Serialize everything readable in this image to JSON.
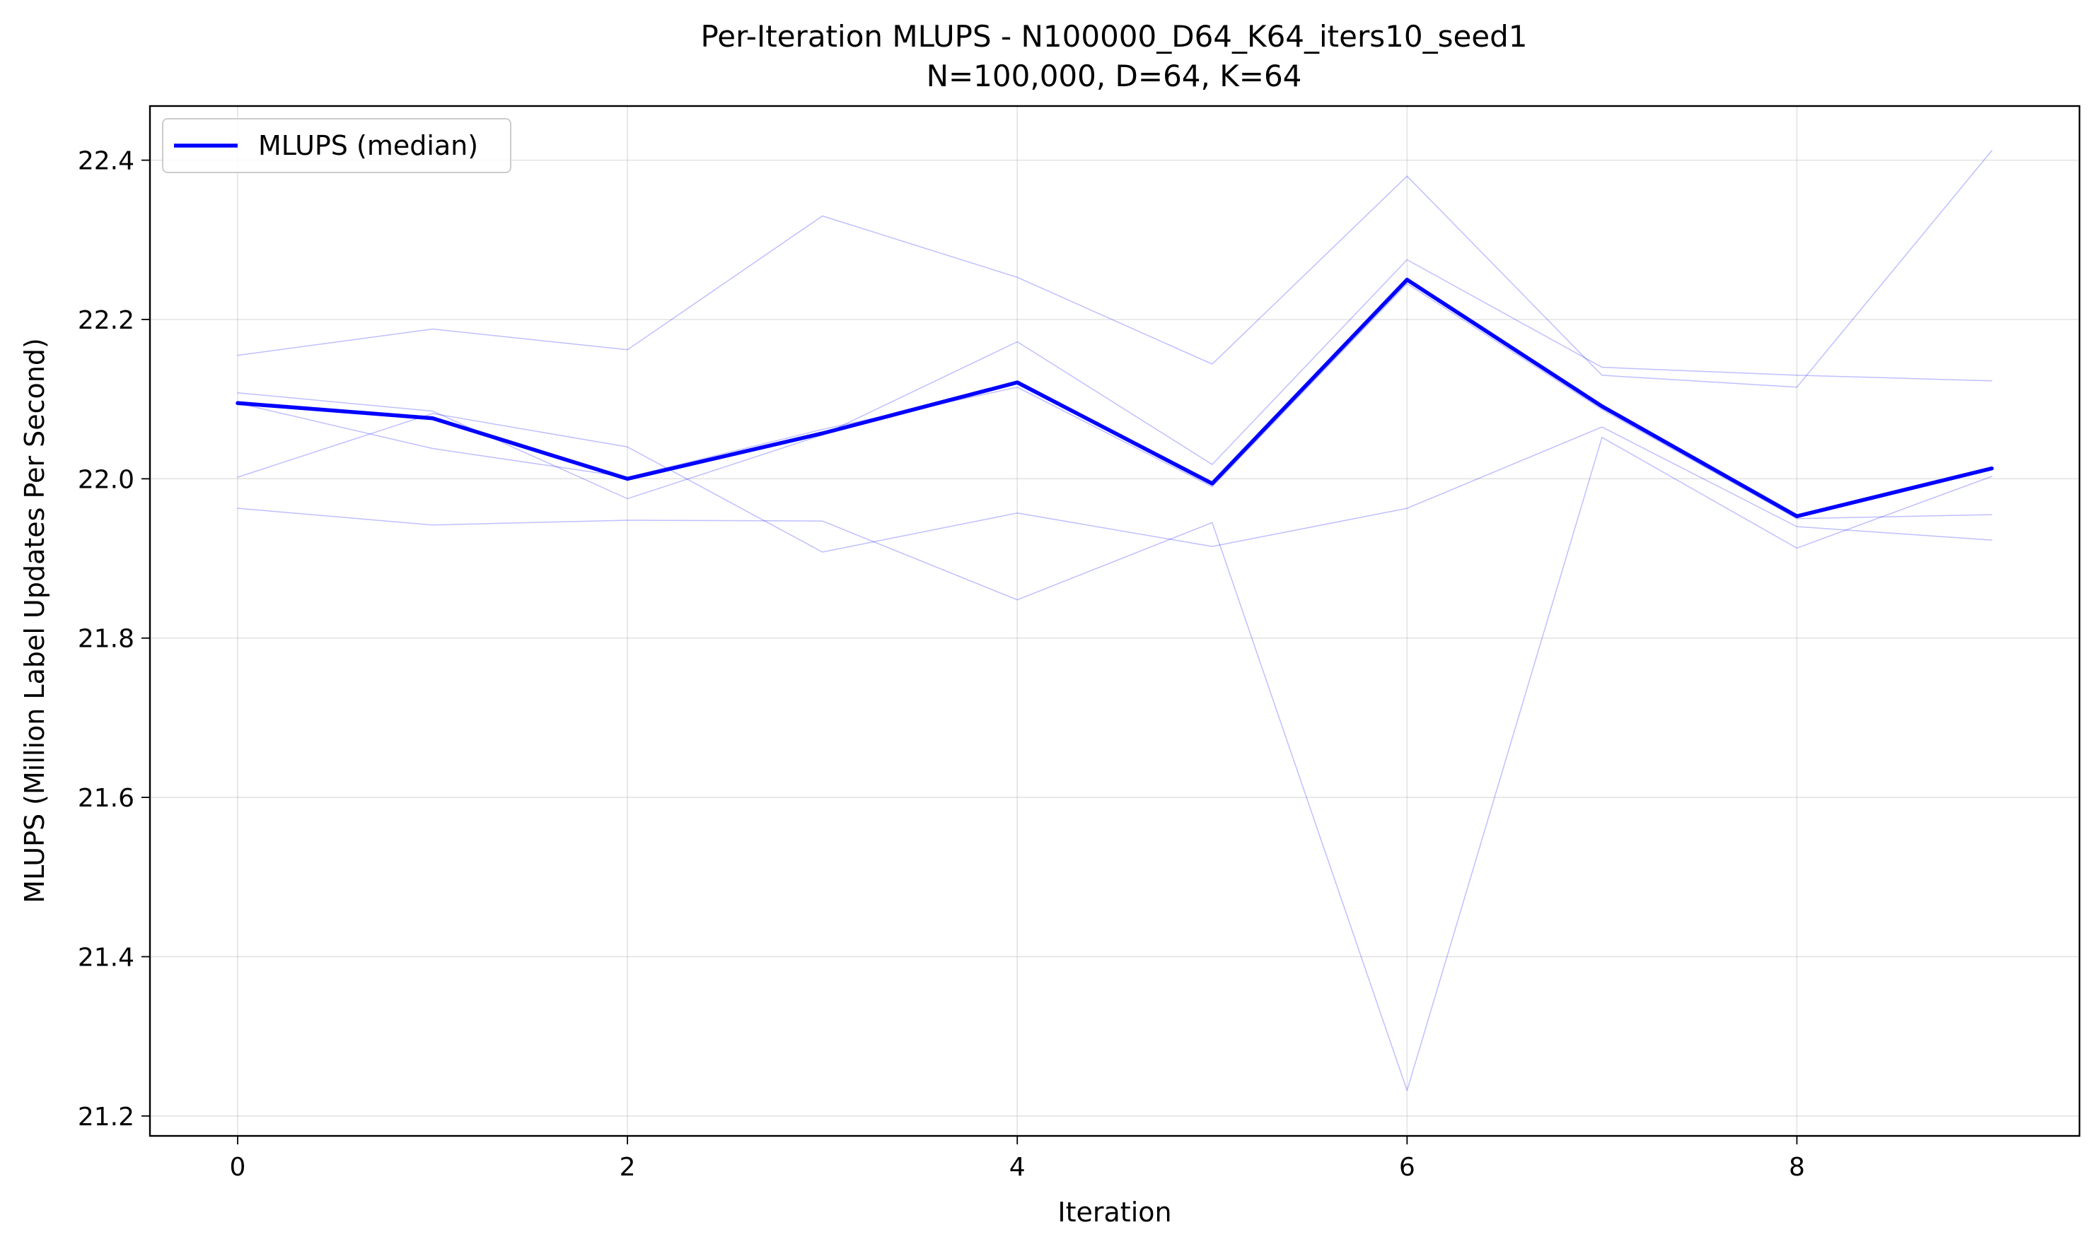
{
  "chart_data": {
    "type": "line",
    "title": "Per-Iteration MLUPS - N100000_D64_K64_iters10_seed1",
    "subtitle": "N=100,000, D=64, K=64",
    "xlabel": "Iteration",
    "ylabel": "MLUPS (Million Label Updates Per Second)",
    "xlim": [
      -0.45,
      9.45
    ],
    "ylim": [
      21.175,
      22.468
    ],
    "xticks": [
      0,
      2,
      4,
      6,
      8
    ],
    "xtick_labels": [
      "0",
      "2",
      "4",
      "6",
      "8"
    ],
    "yticks": [
      21.2,
      21.4,
      21.6,
      21.8,
      22.0,
      22.2,
      22.4
    ],
    "ytick_labels": [
      "21.2",
      "21.4",
      "21.6",
      "21.8",
      "22.0",
      "22.2",
      "22.4"
    ],
    "grid": true,
    "legend_position": "top-left",
    "x": [
      0,
      1,
      2,
      3,
      4,
      5,
      6,
      7,
      8,
      9
    ],
    "series": [
      {
        "name": "MLUPS (median)",
        "values": [
          22.095,
          22.076,
          22.0,
          22.057,
          22.121,
          21.994,
          22.25,
          22.091,
          21.953,
          22.013
        ],
        "color": "#0000ff",
        "highlight": true
      },
      {
        "values": [
          22.155,
          22.188,
          22.162,
          22.33,
          22.253,
          22.144,
          22.38,
          22.13,
          22.115,
          22.412
        ],
        "color": "#0000ff",
        "highlight": false
      },
      {
        "values": [
          22.108,
          22.085,
          21.975,
          22.055,
          22.172,
          22.018,
          22.275,
          22.14,
          22.13,
          22.123
        ],
        "color": "#0000ff",
        "highlight": false
      },
      {
        "values": [
          22.002,
          22.082,
          22.04,
          21.908,
          21.957,
          21.915,
          21.963,
          22.065,
          21.94,
          21.923
        ],
        "color": "#0000ff",
        "highlight": false
      },
      {
        "values": [
          21.963,
          21.942,
          21.948,
          21.947,
          21.848,
          21.945,
          21.232,
          22.052,
          21.913,
          22.003
        ],
        "color": "#0000ff",
        "highlight": false
      },
      {
        "values": [
          22.095,
          22.038,
          22.002,
          22.062,
          22.115,
          21.99,
          22.245,
          22.087,
          21.95,
          21.955
        ],
        "color": "#0000ff",
        "highlight": false
      }
    ]
  }
}
